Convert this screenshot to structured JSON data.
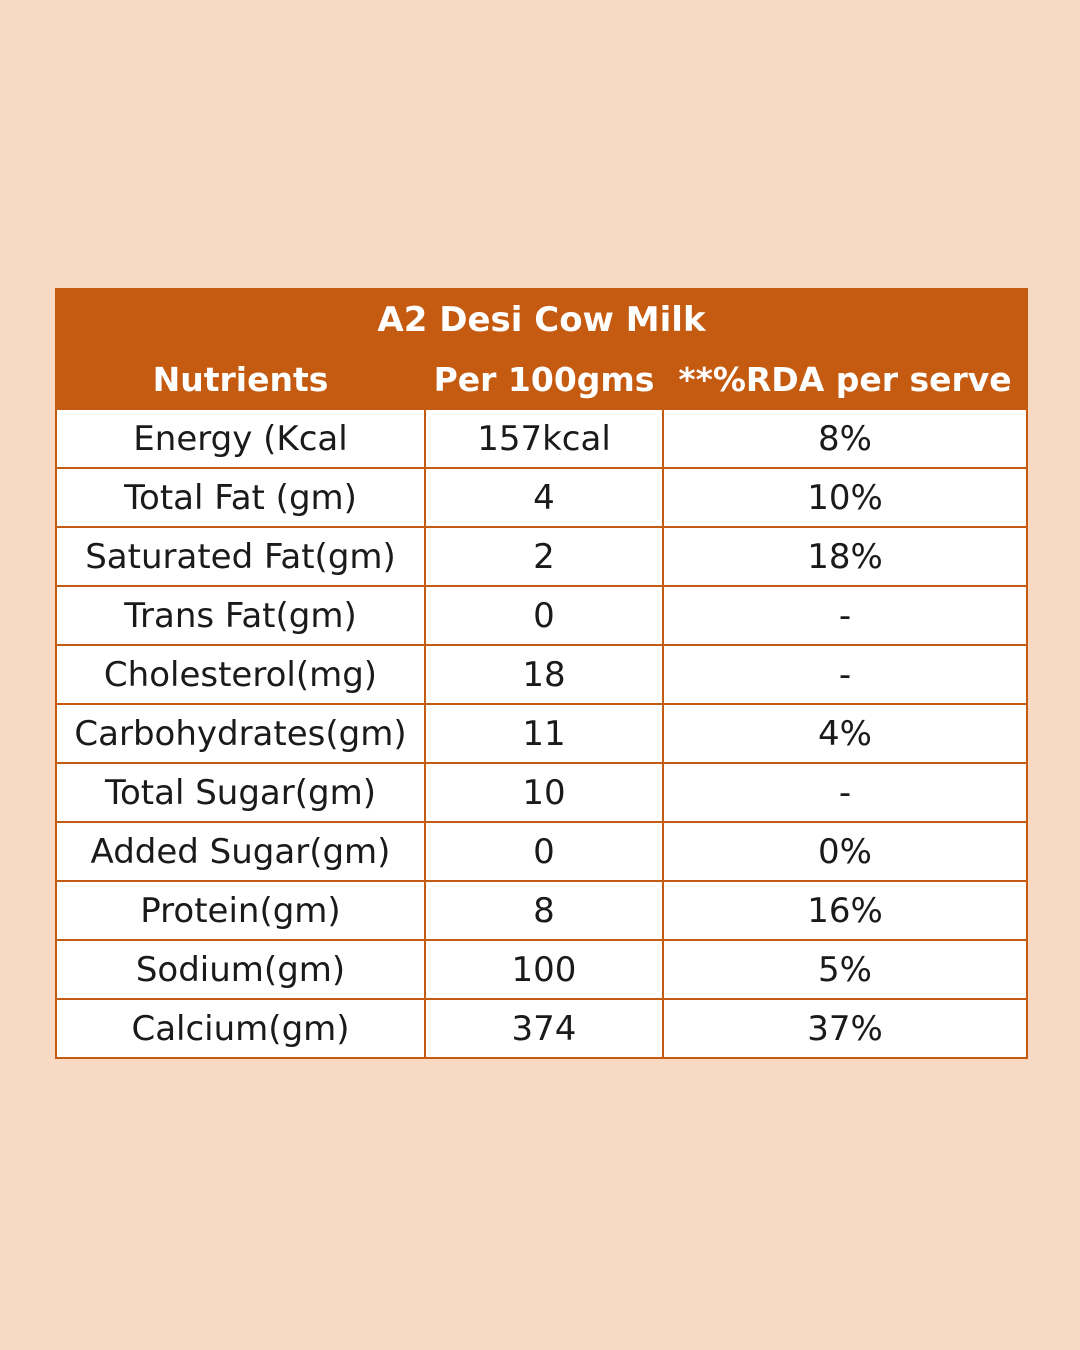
{
  "table": {
    "title": "A2 Desi Cow Milk",
    "headers": [
      "Nutrients",
      "Per 100gms",
      "**%RDA per serve"
    ],
    "rows": [
      [
        "Energy (Kcal",
        "157kcal",
        "8%"
      ],
      [
        "Total Fat (gm)",
        "4",
        "10%"
      ],
      [
        "Saturated Fat(gm)",
        "2",
        "18%"
      ],
      [
        "Trans Fat(gm)",
        "0",
        "-"
      ],
      [
        "Cholesterol(mg)",
        "18",
        "-"
      ],
      [
        "Carbohydrates(gm)",
        "11",
        "4%"
      ],
      [
        "Total Sugar(gm)",
        "10",
        "-"
      ],
      [
        "Added Sugar(gm)",
        "0",
        "0%"
      ],
      [
        "Protein(gm)",
        "8",
        "16%"
      ],
      [
        "Sodium(gm)",
        "100",
        "5%"
      ],
      [
        "Calcium(gm)",
        "374",
        "37%"
      ]
    ]
  },
  "colors": {
    "background": "#f8d9c3",
    "header_fill": "#c55a11",
    "header_text": "#ffffff",
    "cell_fill": "#ffffff",
    "border": "#c55a11"
  }
}
